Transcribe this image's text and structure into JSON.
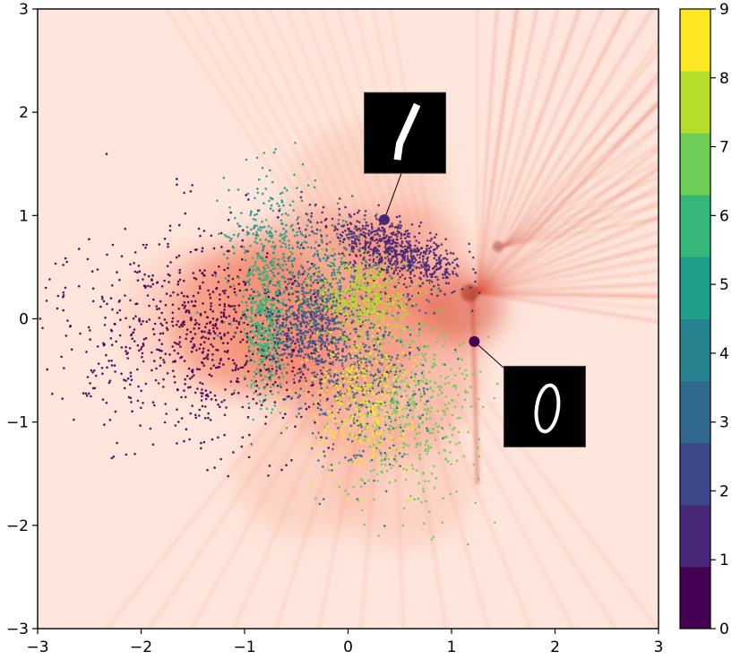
{
  "chart_data": {
    "type": "scatter",
    "title": "",
    "xlabel": "",
    "ylabel": "",
    "xlim": [
      -3,
      3
    ],
    "ylim": [
      -3,
      3
    ],
    "grid": false,
    "x_ticks": [
      -3,
      -2,
      -1,
      0,
      1,
      2,
      3
    ],
    "y_ticks": [
      -3,
      -2,
      -1,
      0,
      1,
      2,
      3
    ],
    "x_tick_labels": [
      "−3",
      "−2",
      "−1",
      "0",
      "1",
      "2",
      "3"
    ],
    "y_tick_labels": [
      "−3",
      "−2",
      "−1",
      "0",
      "1",
      "2",
      "3"
    ],
    "background": "density heatmap (Reds colormap) with radial streaks",
    "colorbar": {
      "position": "right",
      "colormap": "viridis (discrete, 10 levels)",
      "ticks": [
        0,
        1,
        2,
        3,
        4,
        5,
        6,
        7,
        8,
        9
      ],
      "tick_labels": [
        "0",
        "1",
        "2",
        "3",
        "4",
        "5",
        "6",
        "7",
        "8",
        "9"
      ],
      "colors": [
        "#440154",
        "#482878",
        "#3e4989",
        "#31688e",
        "#26828e",
        "#1f9e89",
        "#35b779",
        "#6ece58",
        "#b5de2b",
        "#fde725"
      ]
    },
    "series": [
      {
        "name": "0",
        "color": "#440154",
        "center": [
          -1.15,
          -0.15
        ],
        "spread": [
          0.55,
          0.5
        ],
        "n": 900,
        "tail": "left"
      },
      {
        "name": "1",
        "color": "#482878",
        "center": [
          0.45,
          0.65
        ],
        "spread": [
          0.35,
          0.12
        ],
        "n": 700,
        "angle_deg": -22
      },
      {
        "name": "2",
        "color": "#3e4989",
        "center": [
          -0.35,
          -0.1
        ],
        "spread": [
          0.2,
          0.25
        ],
        "n": 500
      },
      {
        "name": "3",
        "color": "#31688e",
        "center": [
          0.15,
          -0.55
        ],
        "spread": [
          0.3,
          0.45
        ],
        "n": 500
      },
      {
        "name": "4",
        "color": "#26828e",
        "center": [
          -0.2,
          0.35
        ],
        "spread": [
          0.35,
          0.3
        ],
        "n": 400
      },
      {
        "name": "5",
        "color": "#1f9e89",
        "center": [
          -0.75,
          0.8
        ],
        "spread": [
          0.22,
          0.35
        ],
        "n": 250
      },
      {
        "name": "6",
        "color": "#35b779",
        "center": [
          -0.8,
          -0.05
        ],
        "spread": [
          0.1,
          0.35
        ],
        "n": 450
      },
      {
        "name": "7",
        "color": "#6ece58",
        "center": [
          0.6,
          -0.85
        ],
        "spread": [
          0.35,
          0.45
        ],
        "n": 500
      },
      {
        "name": "8",
        "color": "#b5de2b",
        "center": [
          0.15,
          0.2
        ],
        "spread": [
          0.22,
          0.2
        ],
        "n": 450
      },
      {
        "name": "9",
        "color": "#fde725",
        "center": [
          0.1,
          -0.8
        ],
        "spread": [
          0.25,
          0.35
        ],
        "n": 350
      }
    ],
    "annotations": [
      {
        "label": "digit 1 image",
        "digit": "1",
        "point": [
          0.35,
          0.96
        ],
        "point_color": "#482878",
        "image_center": [
          0.55,
          1.8
        ]
      },
      {
        "label": "digit 0 image",
        "digit": "0",
        "point": [
          1.22,
          -0.22
        ],
        "point_color": "#440154",
        "image_center": [
          1.9,
          -0.85
        ]
      }
    ]
  }
}
